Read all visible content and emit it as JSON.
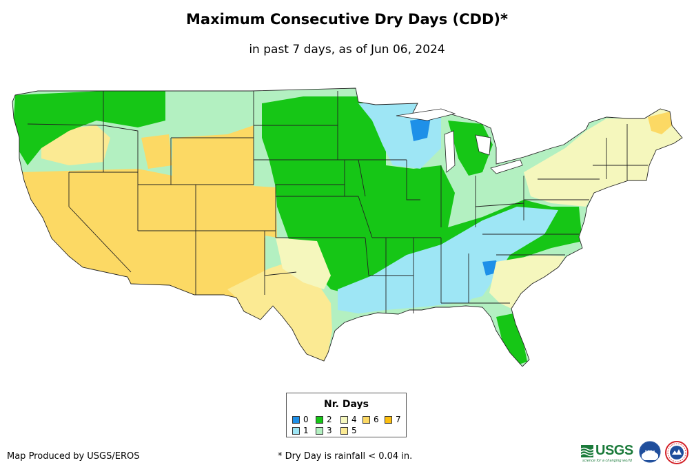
{
  "header": {
    "title": "Maximum Consecutive Dry Days (CDD)*",
    "subtitle": "in past 7 days, as of Jun 06, 2024"
  },
  "legend": {
    "title": "Nr. Days",
    "items": [
      {
        "label": "0",
        "color": "#1e90e8"
      },
      {
        "label": "1",
        "color": "#9ee6f5"
      },
      {
        "label": "2",
        "color": "#16c616"
      },
      {
        "label": "3",
        "color": "#b3f0c1"
      },
      {
        "label": "4",
        "color": "#f5f7bd"
      },
      {
        "label": "5",
        "color": "#fbea93"
      },
      {
        "label": "6",
        "color": "#fcd964"
      },
      {
        "label": "7",
        "color": "#fdbf10"
      }
    ]
  },
  "footer": {
    "credit": "Map Produced by USGS/EROS",
    "note": "* Dry Day is rainfall < 0.04 in."
  },
  "logos": {
    "usgs": "USGS",
    "usgs_tagline": "science for a changing world",
    "noaa": "noaa"
  }
}
